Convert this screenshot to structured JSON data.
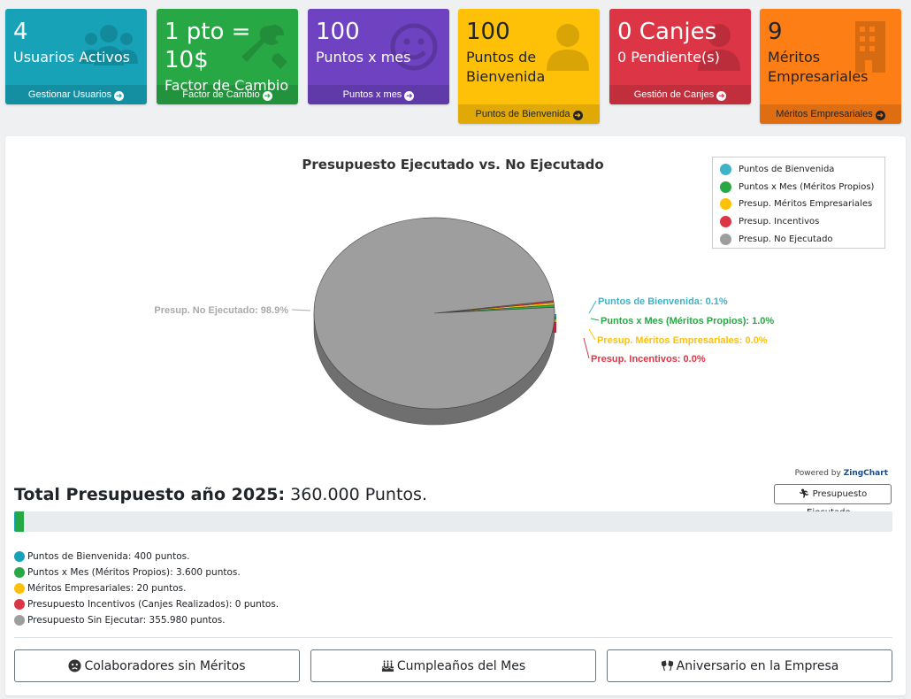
{
  "cards": [
    {
      "value": "4",
      "label": "Usuarios Activos",
      "footer": "Gestionar Usuarios",
      "color": "#17a2b8",
      "icon": "users-icon"
    },
    {
      "value": "1 pto = 10$",
      "label": "Factor de Cambio",
      "footer": "Factor de Cambio",
      "color": "#28a745",
      "icon": "tools-icon"
    },
    {
      "value": "100",
      "label": "Puntos x mes",
      "footer": "Puntos x mes",
      "color": "#6f42c1",
      "icon": "smile-icon"
    },
    {
      "value": "100",
      "label": "Puntos de Bienvenida",
      "footer": "Puntos de Bienvenida",
      "color": "#ffc107",
      "icon": "user-icon"
    },
    {
      "value": "0 Canjes",
      "label": "0 Pendiente(s)",
      "footer": "Gestión de Canjes",
      "color": "#dc3545",
      "icon": "user-icon"
    },
    {
      "value": "9",
      "label": "Méritos Empresariales",
      "footer": "Méritos Empresariales",
      "color": "#fd7e14",
      "icon": "building-icon"
    }
  ],
  "chart_data": {
    "type": "pie",
    "title": "Presupuesto Ejecutado vs. No Ejecutado",
    "legend_position": "top-right",
    "series": [
      {
        "name": "Puntos de Bienvenida",
        "value": 400,
        "percent_label": "Puntos de Bienvenida: 0.1%",
        "color": "#3db3c9"
      },
      {
        "name": "Puntos x Mes (Méritos Propios)",
        "value": 3600,
        "percent_label": "Puntos x Mes (Méritos Propios): 1.0%",
        "color": "#28a745"
      },
      {
        "name": "Presup. Méritos Empresariales",
        "value": 20,
        "percent_label": "Presup. Méritos Empresariales: 0.0%",
        "color": "#ffc107"
      },
      {
        "name": "Presup. Incentivos",
        "value": 0,
        "percent_label": "Presup. Incentivos: 0.0%",
        "color": "#dc3545"
      },
      {
        "name": "Presup. No Ejecutado",
        "value": 355980,
        "percent_label": "Presup. No Ejecutado: 98.9%",
        "color": "#9e9e9e"
      }
    ]
  },
  "powered_by": {
    "prefix": "Powered by",
    "brand": "ZingChart"
  },
  "total": {
    "label": "Total Presupuesto año 2025:",
    "value": "360.000 Puntos."
  },
  "exec_button": "Presupuesto Ejecutado...",
  "progress": [
    {
      "name": "Puntos de Bienvenida",
      "fraction": 0.00111,
      "color": "#17a2b8"
    },
    {
      "name": "Puntos x Mes (Méritos Propios)",
      "fraction": 0.01,
      "color": "#28a745"
    },
    {
      "name": "Méritos Empresariales",
      "fraction": 6e-05,
      "color": "#ffc107"
    },
    {
      "name": "Presupuesto Incentivos",
      "fraction": 0,
      "color": "#dc3545"
    }
  ],
  "breakdown": [
    {
      "text": "Puntos de Bienvenida: 400 puntos.",
      "color": "#17a2b8"
    },
    {
      "text": "Puntos x Mes (Méritos Propios): 3.600 puntos.",
      "color": "#28a745"
    },
    {
      "text": "Méritos Empresariales: 20 puntos.",
      "color": "#ffc107"
    },
    {
      "text": "Presupuesto Incentivos (Canjes Realizados): 0 puntos.",
      "color": "#dc3545"
    },
    {
      "text": "Presupuesto Sin Ejecutar: 355.980 puntos.",
      "color": "#9e9e9e"
    }
  ],
  "actions": [
    {
      "label": "Colaboradores sin Méritos",
      "icon": "sad-face-icon"
    },
    {
      "label": "Cumpleaños del Mes",
      "icon": "birthday-cake-icon"
    },
    {
      "label": "Aniversario en la Empresa",
      "icon": "glasses-cheers-icon"
    }
  ]
}
